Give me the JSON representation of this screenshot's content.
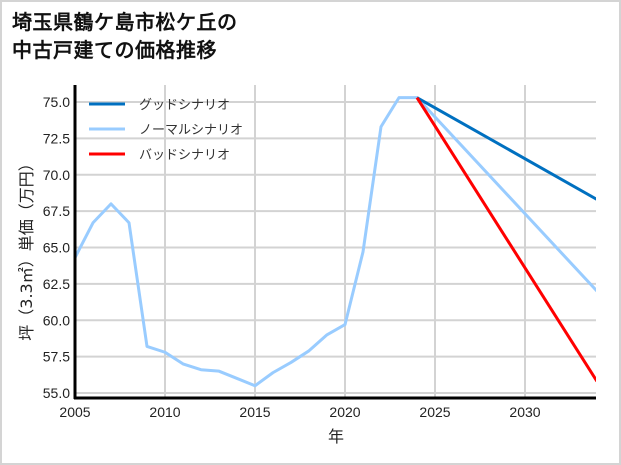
{
  "title_line1": "埼玉県鶴ケ島市松ケ丘の",
  "title_line2": "中古戸建ての価格推移",
  "chart_data": {
    "type": "line",
    "title": "埼玉県鶴ケ島市松ケ丘の中古戸建ての価格推移",
    "xlabel": "年",
    "ylabel": "坪（3.3㎡）単価（万円）",
    "xlim": [
      2005,
      2034
    ],
    "ylim": [
      55.0,
      75.9
    ],
    "xticks": [
      2005,
      2010,
      2015,
      2020,
      2025,
      2030
    ],
    "xtick_labels": [
      "2005",
      "2010",
      "2015",
      "2020",
      "2025",
      "2030"
    ],
    "yticks": [
      55.0,
      57.5,
      60.0,
      62.5,
      65.0,
      67.5,
      70.0,
      72.5,
      75.0
    ],
    "ytick_labels": [
      "55.0",
      "57.5",
      "60.0",
      "62.5",
      "65.0",
      "67.5",
      "70.0",
      "72.5",
      "75.0"
    ],
    "grid": true,
    "legend_position": "upper left",
    "series": [
      {
        "name": "グッドシナリオ",
        "color": "#0070c0",
        "x": [
          2024,
          2034
        ],
        "values": [
          75.3,
          68.3
        ]
      },
      {
        "name": "ノーマルシナリオ",
        "color": "#99ccff",
        "x": [
          2005,
          2006,
          2007,
          2008,
          2009,
          2010,
          2011,
          2012,
          2013,
          2014,
          2015,
          2016,
          2017,
          2018,
          2019,
          2020,
          2021,
          2022,
          2023,
          2024,
          2034
        ],
        "values": [
          64.3,
          66.7,
          68.0,
          66.7,
          58.2,
          57.8,
          57.0,
          56.6,
          56.5,
          56.0,
          55.5,
          56.4,
          57.1,
          57.9,
          59.0,
          59.7,
          64.7,
          73.3,
          75.3,
          75.3,
          62.0
        ]
      },
      {
        "name": "バッドシナリオ",
        "color": "#ff0000",
        "x": [
          2024,
          2034
        ],
        "values": [
          75.3,
          55.8
        ]
      }
    ]
  }
}
